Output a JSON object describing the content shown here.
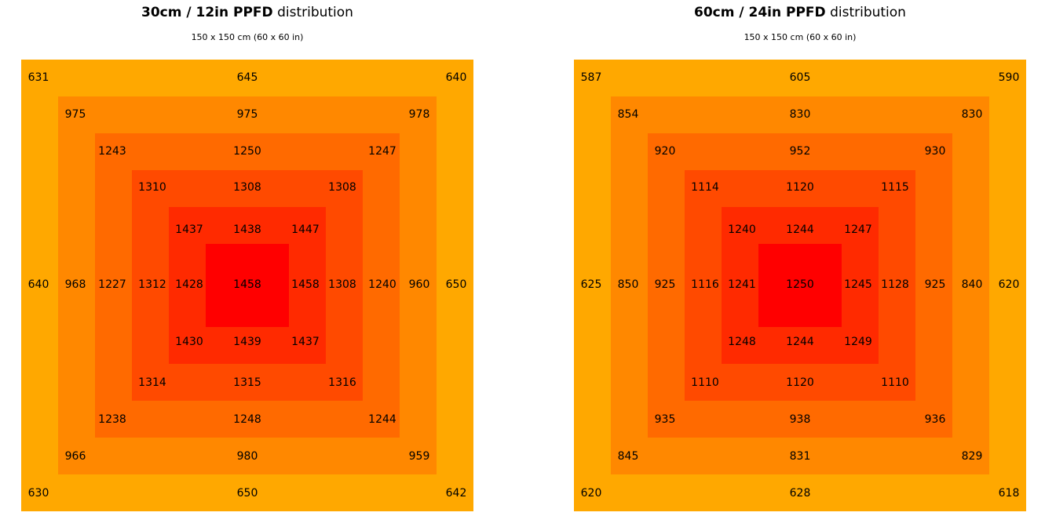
{
  "colors": {
    "ring1": "#FFA800",
    "ring2": "#FF8800",
    "ring3": "#FF6A00",
    "ring4": "#FF4A00",
    "ring5": "#FF2A00",
    "ring6": "#FF0000"
  },
  "chart_data": [
    {
      "type": "heatmap",
      "title_bold": "30cm / 12in PPFD",
      "title_rest": "distribution",
      "subtitle": "150 x 150 cm (60 x 60 in)",
      "rings": [
        {
          "level": 1,
          "values": {
            "tl": 631,
            "t": 645,
            "tr": 640,
            "l": 640,
            "r": 650,
            "bl": 630,
            "b": 650,
            "br": 642
          }
        },
        {
          "level": 2,
          "values": {
            "tl": 975,
            "t": 975,
            "tr": 978,
            "l": 968,
            "r": 960,
            "bl": 966,
            "b": 980,
            "br": 959
          }
        },
        {
          "level": 3,
          "values": {
            "tl": 1243,
            "t": 1250,
            "tr": 1247,
            "l": 1227,
            "r": 1240,
            "bl": 1238,
            "b": 1248,
            "br": 1244
          }
        },
        {
          "level": 4,
          "values": {
            "tl": 1310,
            "t": 1308,
            "tr": 1308,
            "l": 1312,
            "r": 1308,
            "bl": 1314,
            "b": 1315,
            "br": 1316
          }
        },
        {
          "level": 5,
          "values": {
            "tl": 1437,
            "t": 1438,
            "tr": 1447,
            "l": 1428,
            "r": 1458,
            "bl": 1430,
            "b": 1439,
            "br": 1437
          }
        }
      ],
      "center": 1458
    },
    {
      "type": "heatmap",
      "title_bold": "60cm / 24in PPFD",
      "title_rest": "distribution",
      "subtitle": "150 x 150 cm (60 x 60 in)",
      "rings": [
        {
          "level": 1,
          "values": {
            "tl": 587,
            "t": 605,
            "tr": 590,
            "l": 625,
            "r": 620,
            "bl": 620,
            "b": 628,
            "br": 618
          }
        },
        {
          "level": 2,
          "values": {
            "tl": 854,
            "t": 830,
            "tr": 830,
            "l": 850,
            "r": 840,
            "bl": 845,
            "b": 831,
            "br": 829
          }
        },
        {
          "level": 3,
          "values": {
            "tl": 920,
            "t": 952,
            "tr": 930,
            "l": 925,
            "r": 925,
            "bl": 935,
            "b": 938,
            "br": 936
          }
        },
        {
          "level": 4,
          "values": {
            "tl": 1114,
            "t": 1120,
            "tr": 1115,
            "l": 1116,
            "r": 1128,
            "bl": 1110,
            "b": 1120,
            "br": 1110
          }
        },
        {
          "level": 5,
          "values": {
            "tl": 1240,
            "t": 1244,
            "tr": 1247,
            "l": 1241,
            "r": 1245,
            "bl": 1248,
            "b": 1244,
            "br": 1249
          }
        }
      ],
      "center": 1250
    }
  ]
}
